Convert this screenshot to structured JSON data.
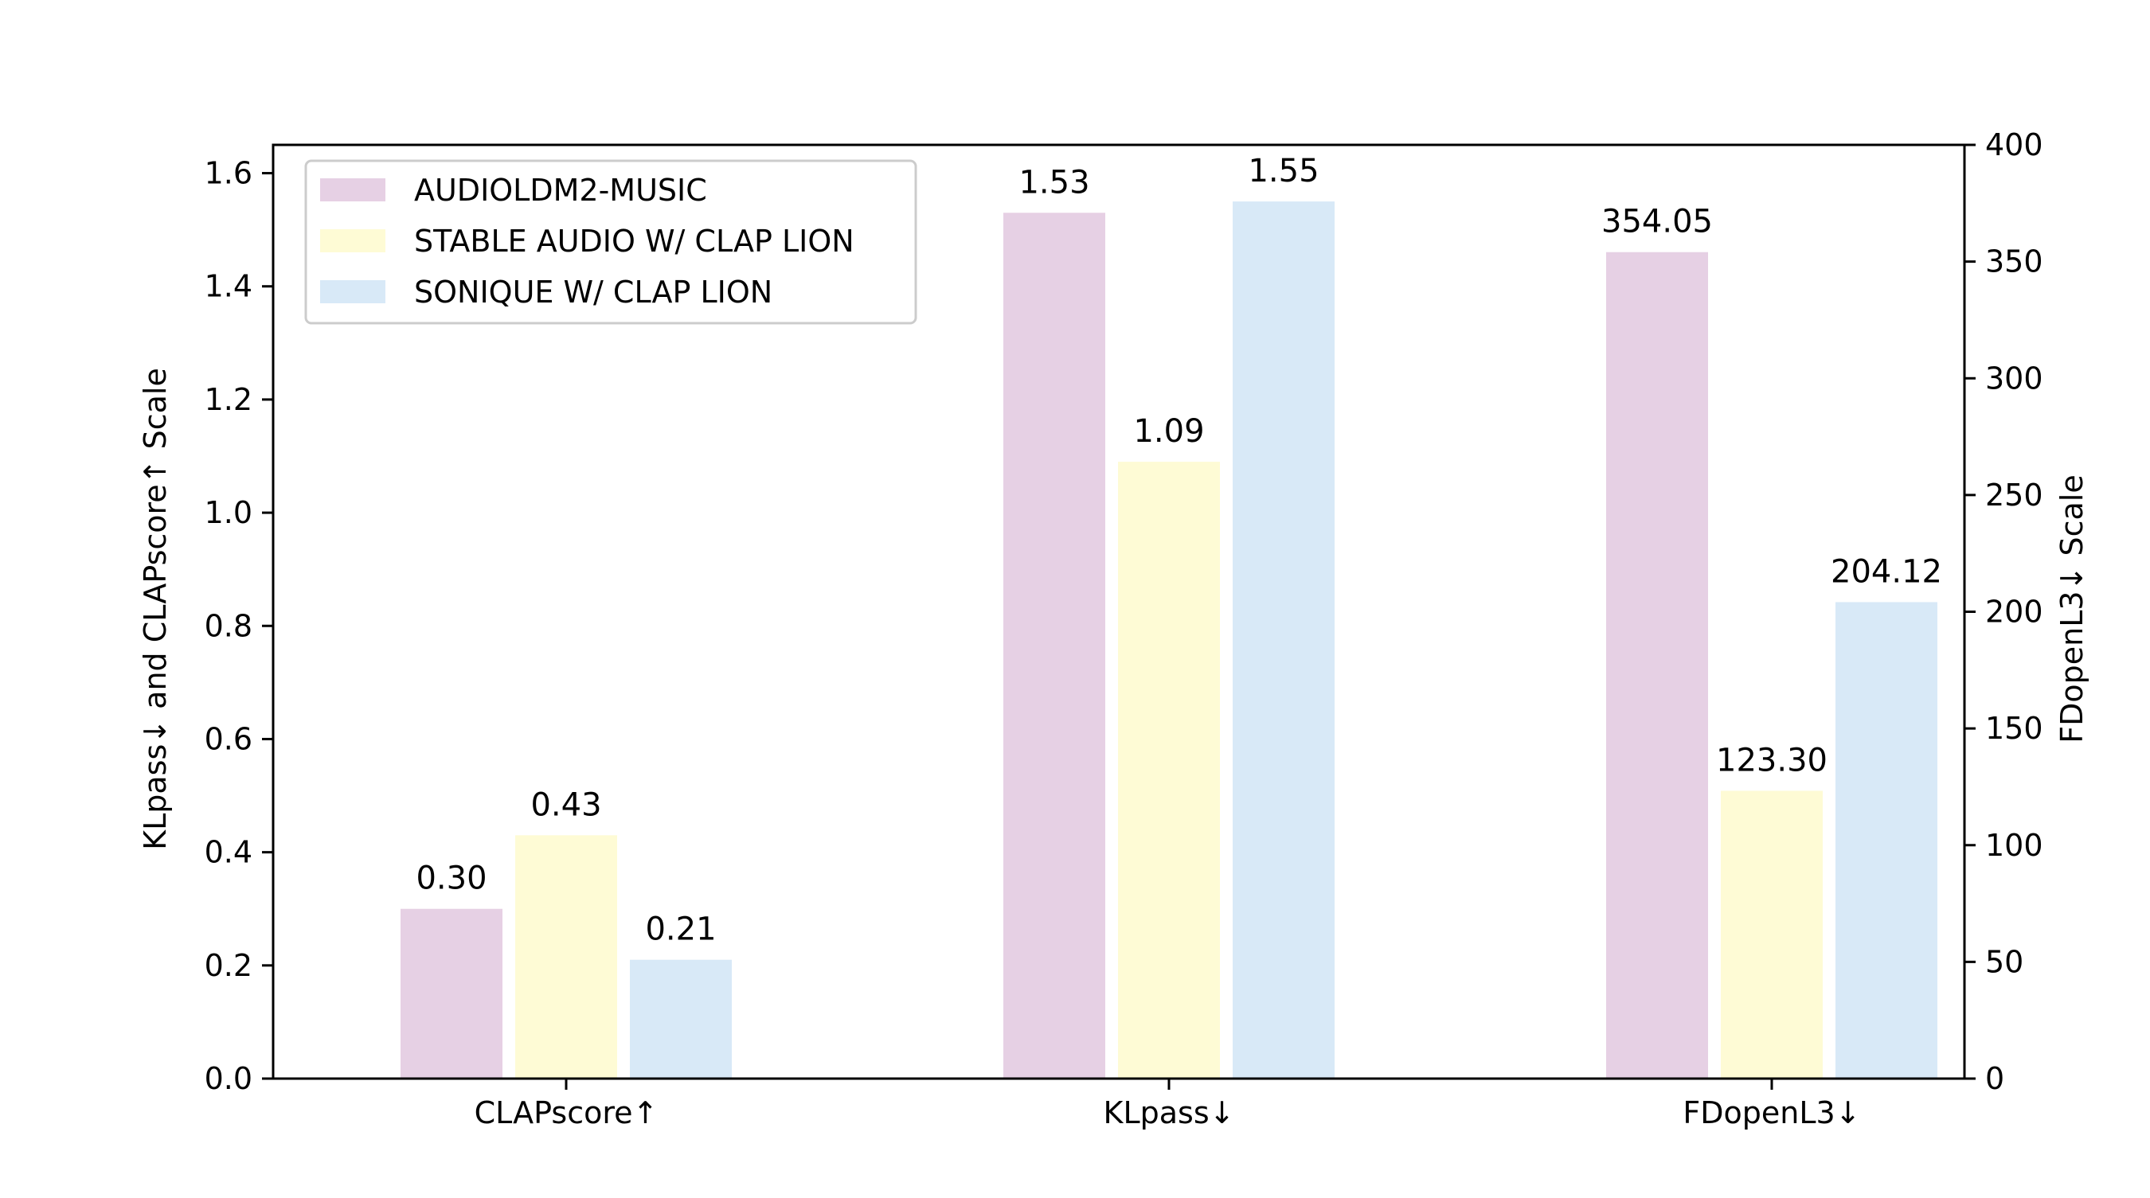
{
  "chart_data": {
    "type": "bar",
    "categories": [
      "CLAPscore↑",
      "KLpass↓",
      "FDopenL3↓"
    ],
    "series": [
      {
        "name": "AUDIOLDM2-MUSIC",
        "color": "#e6d0e4",
        "values": [
          0.3,
          1.53,
          354.05
        ],
        "labels": [
          "0.30",
          "1.53",
          "354.05"
        ]
      },
      {
        "name": "STABLE AUDIO W/ CLAP LION",
        "color": "#fefbd5",
        "values": [
          0.43,
          1.09,
          123.3
        ],
        "labels": [
          "0.43",
          "1.09",
          "123.30"
        ]
      },
      {
        "name": "SONIQUE W/ CLAP LION",
        "color": "#d8e9f7",
        "values": [
          0.21,
          1.55,
          204.12
        ],
        "labels": [
          "0.21",
          "1.55",
          "204.12"
        ]
      }
    ],
    "category_axis": [
      "left",
      "left",
      "right"
    ],
    "left_axis": {
      "label": "KLpass↓ and CLAPscore↑ Scale",
      "ylim": [
        0,
        1.65
      ],
      "ticks": [
        0.0,
        0.2,
        0.4,
        0.6,
        0.8,
        1.0,
        1.2,
        1.4,
        1.6
      ],
      "tick_labels": [
        "0.0",
        "0.2",
        "0.4",
        "0.6",
        "0.8",
        "1.0",
        "1.2",
        "1.4",
        "1.6"
      ]
    },
    "right_axis": {
      "label": "FDopenL3↓ Scale",
      "ylim": [
        0,
        400
      ],
      "ticks": [
        0,
        50,
        100,
        150,
        200,
        250,
        300,
        350,
        400
      ],
      "tick_labels": [
        "0",
        "50",
        "100",
        "150",
        "200",
        "250",
        "300",
        "350",
        "400"
      ]
    },
    "legend_position": "top-left",
    "grid": false
  }
}
